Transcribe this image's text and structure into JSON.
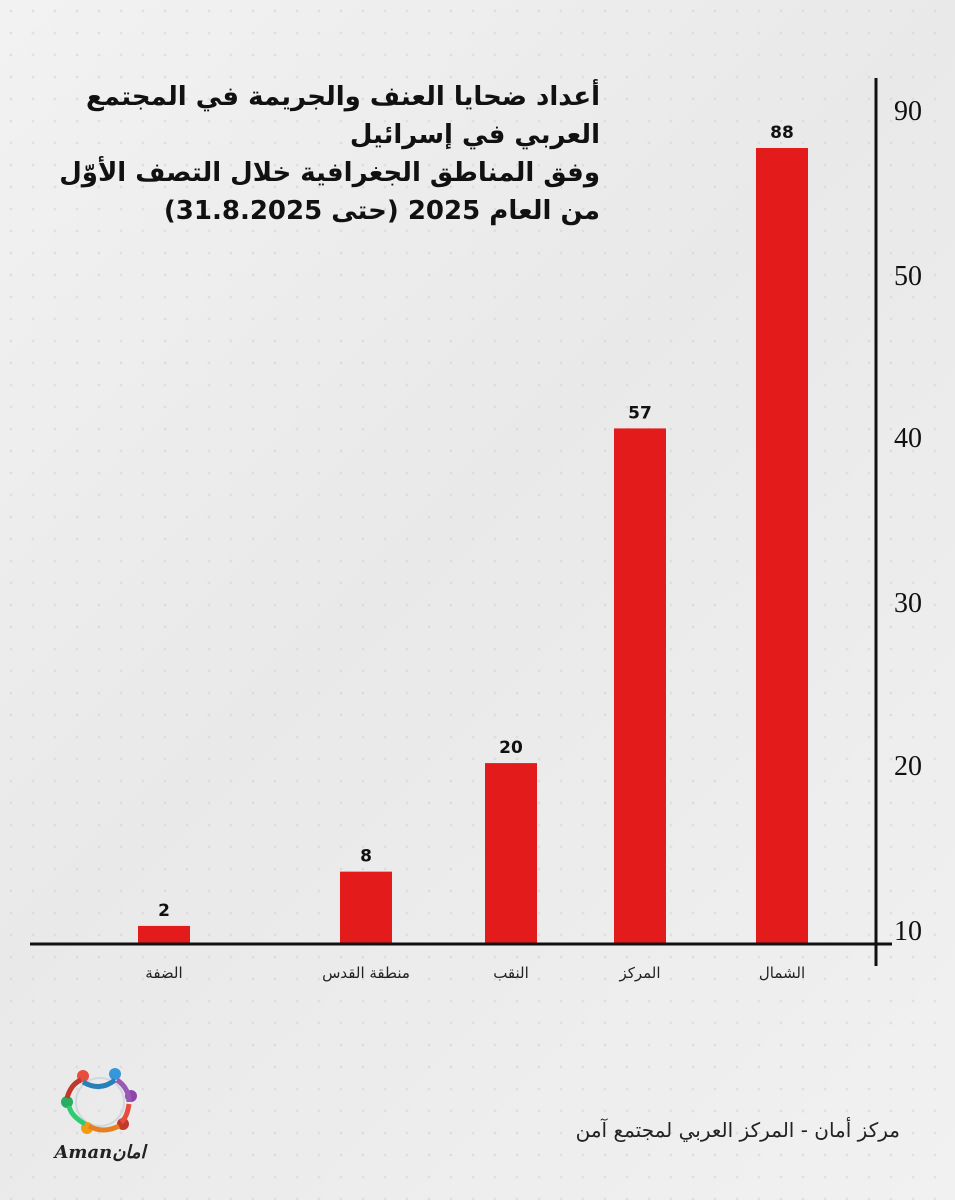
{
  "title_lines": [
    "أعداد ضحايا العنف والجريمة في المجتمع",
    "العربي في إسرائيل",
    "وفق المناطق الجغرافية خلال التصف الأوّل",
    "من العام 2025 (حتى 31.8.2025)"
  ],
  "footer_text": "مركز أمان  - المركز العربي لمجتمع آمن",
  "logo_text": "Amanامان",
  "chart_data": {
    "type": "bar",
    "categories": [
      "الضفة",
      "منطقة القدس",
      "النقب",
      "المركز",
      "الشمال"
    ],
    "values": [
      2,
      8,
      20,
      57,
      88
    ],
    "y_tick_labels": [
      "10",
      "20",
      "30",
      "40",
      "50",
      "90"
    ],
    "axis_position": "right",
    "grid": false,
    "bar_color": "#e31b1b"
  }
}
